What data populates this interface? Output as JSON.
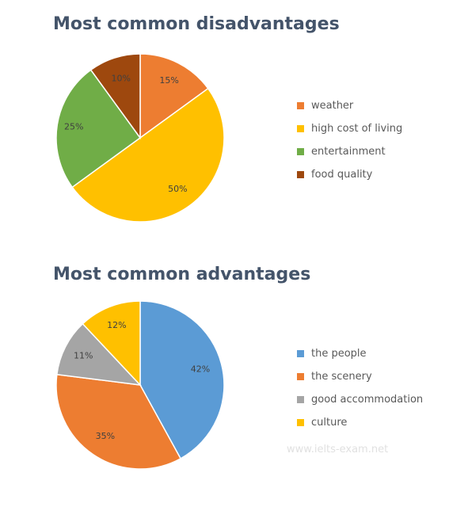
{
  "chart_data": [
    {
      "type": "pie",
      "title": "Most common disadvantages",
      "categories": [
        "weather",
        "high cost of living",
        "entertainment",
        "food quality"
      ],
      "values": [
        15,
        50,
        25,
        10
      ],
      "labels": [
        "15%",
        "50%",
        "25%",
        "10%"
      ],
      "colors": [
        "#ed7d31",
        "#ffc000",
        "#70ad47",
        "#9e480e"
      ],
      "legend": "right"
    },
    {
      "type": "pie",
      "title": "Most common advantages",
      "categories": [
        "the people",
        "the scenery",
        "good accommodation",
        "culture"
      ],
      "values": [
        42,
        35,
        11,
        12
      ],
      "labels": [
        "42%",
        "35%",
        "11%",
        "12%"
      ],
      "colors": [
        "#5b9bd5",
        "#ed7d31",
        "#a5a5a5",
        "#ffc000"
      ],
      "legend": "right"
    }
  ],
  "watermark": "www.ielts-exam.net"
}
